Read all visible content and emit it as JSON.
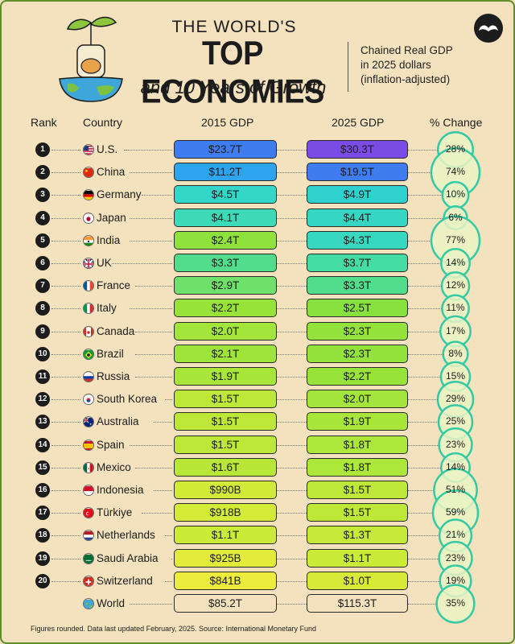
{
  "title": {
    "line1": "THE WORLD'S",
    "line2": "TOP ECONOMIES",
    "line3": "and 10 Years of Growth"
  },
  "subtitle": [
    "Chained Real GDP",
    "in 2025 dollars",
    "(inflation-adjusted)"
  ],
  "icons": {
    "logo": "mustache-logo-icon",
    "illustration": "plant-globe-jar-icon"
  },
  "colors": {
    "background": "#f3e2bd",
    "low_growth": "#d8ee3a",
    "mid": "#7fe24a",
    "high": "#33d7c8",
    "top_2015": "#3f7cf0",
    "top_2025": "#7b4be6",
    "bubble_ring": "#35c9a4"
  },
  "chart_data": {
    "type": "table",
    "columns": [
      "Rank",
      "Country",
      "2015 GDP",
      "2025 GDP",
      "% Change"
    ],
    "rows": [
      {
        "rank": "1",
        "country": "U.S.",
        "gdp_2015": "$23.7T",
        "gdp_2025": "$30.3T",
        "change": "28%",
        "value_2015": 23.7,
        "value_2025": 30.3,
        "pct": 28,
        "flag": "us-flag-icon",
        "color_2015": "#3f7cf0",
        "color_2025": "#7b4be6"
      },
      {
        "rank": "2",
        "country": "China",
        "gdp_2015": "$11.2T",
        "gdp_2025": "$19.5T",
        "change": "74%",
        "value_2015": 11.2,
        "value_2025": 19.5,
        "pct": 74,
        "flag": "china-flag-icon",
        "color_2015": "#2fa4ee",
        "color_2025": "#3f7cf0"
      },
      {
        "rank": "3",
        "country": "Germany",
        "gdp_2015": "$4.5T",
        "gdp_2025": "$4.9T",
        "change": "10%",
        "value_2015": 4.5,
        "value_2025": 4.9,
        "pct": 10,
        "flag": "germany-flag-icon",
        "color_2015": "#33d7c8",
        "color_2025": "#2fd1cf"
      },
      {
        "rank": "4",
        "country": "Japan",
        "gdp_2015": "$4.1T",
        "gdp_2025": "$4.4T",
        "change": "6%",
        "value_2015": 4.1,
        "value_2025": 4.4,
        "pct": 6,
        "flag": "japan-flag-icon",
        "color_2015": "#3ddab8",
        "color_2025": "#35d6c2"
      },
      {
        "rank": "5",
        "country": "India",
        "gdp_2015": "$2.4T",
        "gdp_2025": "$4.3T",
        "change": "77%",
        "value_2015": 2.4,
        "value_2025": 4.3,
        "pct": 77,
        "flag": "india-flag-icon",
        "color_2015": "#8fe23c",
        "color_2025": "#38d7c0"
      },
      {
        "rank": "6",
        "country": "UK",
        "gdp_2015": "$3.3T",
        "gdp_2025": "$3.7T",
        "change": "14%",
        "value_2015": 3.3,
        "value_2025": 3.7,
        "pct": 14,
        "flag": "uk-flag-icon",
        "color_2015": "#52dd8c",
        "color_2025": "#45dca3"
      },
      {
        "rank": "7",
        "country": "France",
        "gdp_2015": "$2.9T",
        "gdp_2025": "$3.3T",
        "change": "12%",
        "value_2015": 2.9,
        "value_2025": 3.3,
        "pct": 12,
        "flag": "france-flag-icon",
        "color_2015": "#6fe06a",
        "color_2025": "#52dd8c"
      },
      {
        "rank": "8",
        "country": "Italy",
        "gdp_2015": "$2.2T",
        "gdp_2025": "$2.5T",
        "change": "11%",
        "value_2015": 2.2,
        "value_2025": 2.5,
        "pct": 11,
        "flag": "italy-flag-icon",
        "color_2015": "#98e33a",
        "color_2025": "#88e23e"
      },
      {
        "rank": "9",
        "country": "Canada",
        "gdp_2015": "$2.0T",
        "gdp_2025": "$2.3T",
        "change": "17%",
        "value_2015": 2.0,
        "value_2025": 2.3,
        "pct": 17,
        "flag": "canada-flag-icon",
        "color_2015": "#a3e53a",
        "color_2025": "#93e33c"
      },
      {
        "rank": "10",
        "country": "Brazil",
        "gdp_2015": "$2.1T",
        "gdp_2025": "$2.3T",
        "change": "8%",
        "value_2015": 2.1,
        "value_2025": 2.3,
        "pct": 8,
        "flag": "brazil-flag-icon",
        "color_2015": "#9ee43a",
        "color_2025": "#93e33c"
      },
      {
        "rank": "11",
        "country": "Russia",
        "gdp_2015": "$1.9T",
        "gdp_2025": "$2.2T",
        "change": "15%",
        "value_2015": 1.9,
        "value_2025": 2.2,
        "pct": 15,
        "flag": "russia-flag-icon",
        "color_2015": "#a8e639",
        "color_2025": "#98e33a"
      },
      {
        "rank": "12",
        "country": "South Korea",
        "gdp_2015": "$1.5T",
        "gdp_2025": "$2.0T",
        "change": "29%",
        "value_2015": 1.5,
        "value_2025": 2.0,
        "pct": 29,
        "flag": "south-korea-flag-icon",
        "color_2015": "#bde838",
        "color_2025": "#a3e53a"
      },
      {
        "rank": "13",
        "country": "Australia",
        "gdp_2015": "$1.5T",
        "gdp_2025": "$1.9T",
        "change": "25%",
        "value_2015": 1.5,
        "value_2025": 1.9,
        "pct": 25,
        "flag": "australia-flag-icon",
        "color_2015": "#bde838",
        "color_2025": "#a8e639"
      },
      {
        "rank": "14",
        "country": "Spain",
        "gdp_2015": "$1.5T",
        "gdp_2025": "$1.8T",
        "change": "23%",
        "value_2015": 1.5,
        "value_2025": 1.8,
        "pct": 23,
        "flag": "spain-flag-icon",
        "color_2015": "#bde838",
        "color_2025": "#ade739"
      },
      {
        "rank": "15",
        "country": "Mexico",
        "gdp_2015": "$1.6T",
        "gdp_2025": "$1.8T",
        "change": "14%",
        "value_2015": 1.6,
        "value_2025": 1.8,
        "pct": 14,
        "flag": "mexico-flag-icon",
        "color_2015": "#b8e738",
        "color_2025": "#ade739"
      },
      {
        "rank": "16",
        "country": "Indonesia",
        "gdp_2015": "$990B",
        "gdp_2025": "$1.5T",
        "change": "51%",
        "value_2015": 0.99,
        "value_2025": 1.5,
        "pct": 51,
        "flag": "indonesia-flag-icon",
        "color_2015": "#d0ea38",
        "color_2025": "#bde838"
      },
      {
        "rank": "17",
        "country": "Türkiye",
        "gdp_2015": "$918B",
        "gdp_2025": "$1.5T",
        "change": "59%",
        "value_2015": 0.918,
        "value_2025": 1.5,
        "pct": 59,
        "flag": "turkiye-flag-icon",
        "color_2015": "#d4eb38",
        "color_2025": "#bde838"
      },
      {
        "rank": "18",
        "country": "Netherlands",
        "gdp_2015": "$1.1T",
        "gdp_2025": "$1.3T",
        "change": "21%",
        "value_2015": 1.1,
        "value_2025": 1.3,
        "pct": 21,
        "flag": "netherlands-flag-icon",
        "color_2015": "#ccea38",
        "color_2025": "#c4e938"
      },
      {
        "rank": "19",
        "country": "Saudi Arabia",
        "gdp_2015": "$925B",
        "gdp_2025": "$1.1T",
        "change": "23%",
        "value_2015": 0.925,
        "value_2025": 1.1,
        "pct": 23,
        "flag": "saudi-arabia-flag-icon",
        "color_2015": "#e4ec3a",
        "color_2025": "#ccea38"
      },
      {
        "rank": "20",
        "country": "Switzerland",
        "gdp_2015": "$841B",
        "gdp_2025": "$1.0T",
        "change": "19%",
        "value_2015": 0.841,
        "value_2025": 1.0,
        "pct": 19,
        "flag": "switzerland-flag-icon",
        "color_2015": "#ecec3c",
        "color_2025": "#d8ea38"
      },
      {
        "rank": "",
        "country": "World",
        "gdp_2015": "$85.2T",
        "gdp_2025": "$115.3T",
        "change": "35%",
        "value_2015": 85.2,
        "value_2025": 115.3,
        "pct": 35,
        "flag": "globe-icon",
        "color_2015": "#f3e2bd",
        "color_2025": "#f3e2bd"
      }
    ]
  },
  "footnote": "Figures rounded. Data last updated February, 2025. Source: International Monetary Fund"
}
